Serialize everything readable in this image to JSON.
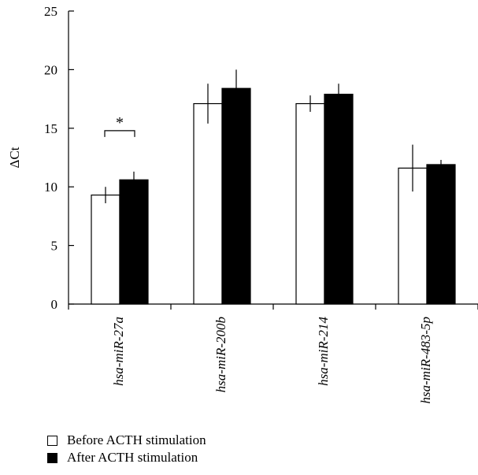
{
  "chart_data": {
    "type": "bar",
    "title": "",
    "xlabel": "",
    "ylabel": "ΔCt",
    "ylim": [
      0,
      25
    ],
    "yticks": [
      0,
      5,
      10,
      15,
      20,
      25
    ],
    "categories": [
      "hsa-miR-27a",
      "hsa-miR-200b",
      "hsa-miR-214",
      "hsa-miR-483-5p"
    ],
    "series": [
      {
        "name": "Before ACTH stimulation",
        "values": [
          9.3,
          17.1,
          17.1,
          11.6
        ],
        "error": [
          0.7,
          1.7,
          0.7,
          2.0
        ],
        "color": "#ffffff"
      },
      {
        "name": "After ACTH stimulation",
        "values": [
          10.6,
          18.4,
          17.9,
          11.9
        ],
        "error": [
          0.7,
          1.6,
          0.9,
          0.4
        ],
        "color": "#000000"
      }
    ],
    "annotations": [
      {
        "text": "*",
        "category": "hsa-miR-27a",
        "type": "significance-bracket"
      }
    ],
    "grid": false,
    "legend": "bottom-left"
  }
}
